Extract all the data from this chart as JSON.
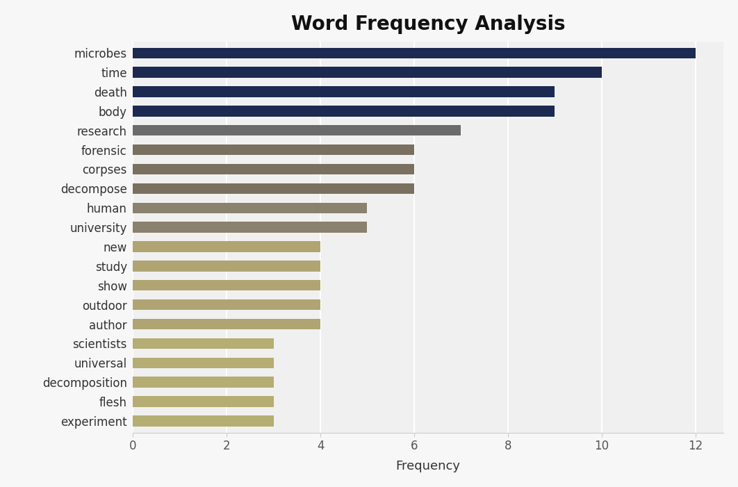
{
  "title": "Word Frequency Analysis",
  "categories": [
    "microbes",
    "time",
    "death",
    "body",
    "research",
    "forensic",
    "corpses",
    "decompose",
    "human",
    "university",
    "new",
    "study",
    "show",
    "outdoor",
    "author",
    "scientists",
    "universal",
    "decomposition",
    "flesh",
    "experiment"
  ],
  "values": [
    12,
    10,
    9,
    9,
    7,
    6,
    6,
    6,
    5,
    5,
    4,
    4,
    4,
    4,
    4,
    3,
    3,
    3,
    3,
    3
  ],
  "bar_colors": [
    "#1c2951",
    "#1c2951",
    "#1c2951",
    "#1c2951",
    "#6b6b6b",
    "#797060",
    "#797060",
    "#797060",
    "#8a816e",
    "#8a816e",
    "#b0a472",
    "#b0a472",
    "#b0a472",
    "#b0a472",
    "#b0a472",
    "#b5ad72",
    "#b5ad72",
    "#b5ad72",
    "#b5ad72",
    "#b5ad72"
  ],
  "xlabel": "Frequency",
  "xlim_max": 12.6,
  "xticks": [
    0,
    2,
    4,
    6,
    8,
    10,
    12
  ],
  "title_fontsize": 20,
  "label_fontsize": 13,
  "tick_fontsize": 12,
  "bar_height": 0.55,
  "background_color": "#f7f7f7",
  "plot_bg_color": "#f0f0f0"
}
